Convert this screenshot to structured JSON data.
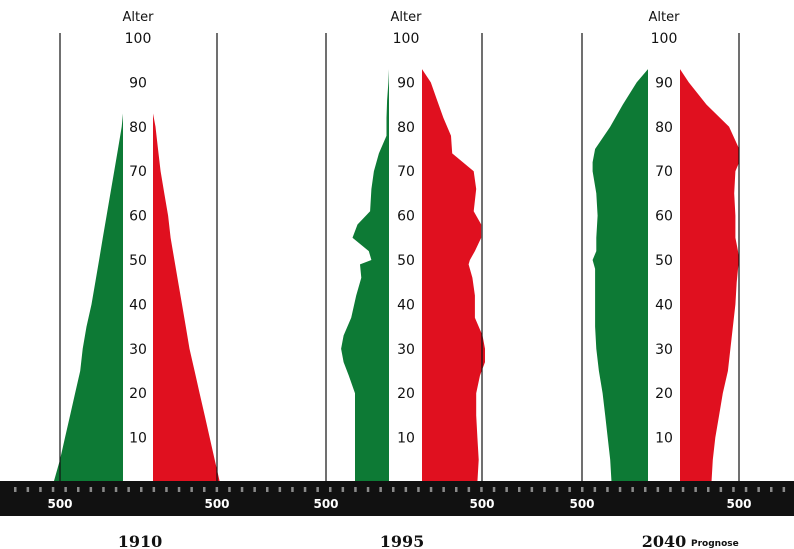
{
  "chart_data": {
    "type": "population-pyramid",
    "y_axis_label": "Alter",
    "y_ticks": [
      10,
      20,
      30,
      40,
      50,
      60,
      70,
      80,
      90,
      100
    ],
    "x_tick_label": "500",
    "colors": {
      "left": "#0d7a35",
      "right": "#e0101f",
      "baseline": "#111111"
    },
    "pyramids": [
      {
        "year": "1910",
        "subtitle": "",
        "ages": [
          0,
          5,
          10,
          15,
          20,
          25,
          30,
          35,
          40,
          45,
          50,
          55,
          60,
          65,
          70,
          75,
          80,
          83
        ],
        "left": [
          550,
          500,
          460,
          420,
          380,
          340,
          320,
          290,
          250,
          220,
          190,
          160,
          130,
          100,
          70,
          40,
          10,
          0
        ],
        "right": [
          530,
          490,
          450,
          410,
          370,
          330,
          290,
          260,
          230,
          200,
          170,
          140,
          120,
          90,
          60,
          40,
          20,
          0
        ]
      },
      {
        "year": "1995",
        "subtitle": "",
        "ages": [
          0,
          5,
          10,
          15,
          20,
          24,
          27,
          30,
          33,
          37,
          42,
          46,
          49,
          50,
          52,
          55,
          58,
          61,
          66,
          70,
          74,
          78,
          82,
          86,
          90,
          93
        ],
        "left": [
          270,
          270,
          270,
          270,
          270,
          320,
          360,
          380,
          360,
          300,
          260,
          220,
          230,
          140,
          160,
          290,
          250,
          150,
          140,
          120,
          80,
          20,
          20,
          15,
          5,
          0
        ],
        "right": [
          440,
          450,
          440,
          430,
          430,
          460,
          500,
          500,
          480,
          420,
          420,
          400,
          370,
          380,
          420,
          470,
          470,
          410,
          430,
          410,
          240,
          230,
          170,
          120,
          70,
          0
        ]
      },
      {
        "year": "2040",
        "subtitle": "Prognose",
        "ages": [
          0,
          5,
          10,
          15,
          20,
          25,
          30,
          35,
          40,
          45,
          48,
          50,
          52,
          55,
          60,
          65,
          70,
          72,
          75,
          80,
          85,
          90,
          93
        ],
        "left": [
          290,
          300,
          320,
          340,
          360,
          390,
          410,
          420,
          420,
          420,
          420,
          440,
          410,
          410,
          400,
          410,
          440,
          440,
          420,
          300,
          200,
          90,
          0
        ],
        "right": [
          250,
          260,
          280,
          310,
          340,
          380,
          400,
          420,
          440,
          450,
          460,
          470,
          460,
          440,
          440,
          430,
          440,
          470,
          470,
          390,
          210,
          70,
          0
        ]
      }
    ]
  }
}
